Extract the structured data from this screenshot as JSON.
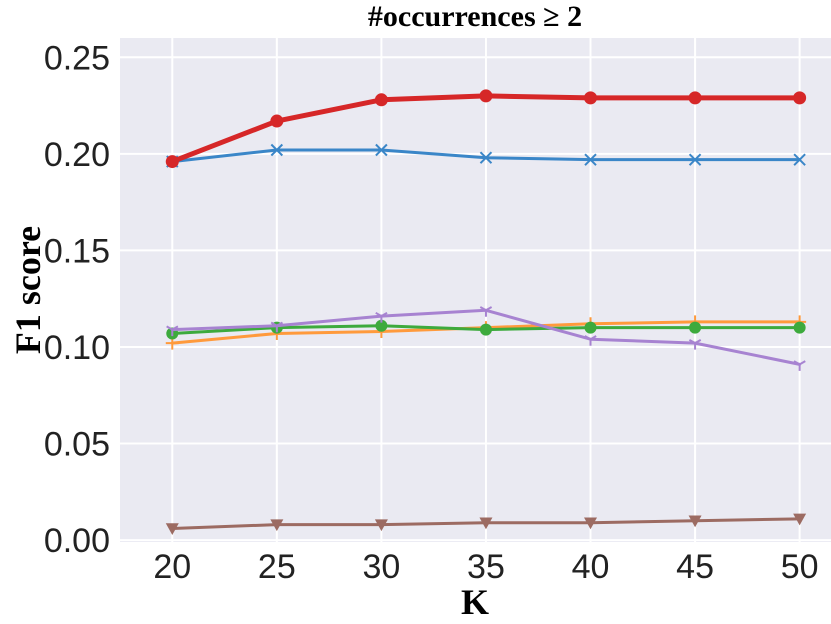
{
  "chart_data": {
    "type": "line",
    "title": "#occurrences ≥ 2",
    "xlabel": "K",
    "ylabel": "F1 score",
    "x": [
      20,
      25,
      30,
      35,
      40,
      45,
      50
    ],
    "xlim": [
      17.5,
      51.5
    ],
    "ylim": [
      -0.001,
      0.26
    ],
    "yticks": [
      "0.00",
      "0.05",
      "0.10",
      "0.15",
      "0.20",
      "0.25"
    ],
    "ytick_values": [
      0.0,
      0.05,
      0.1,
      0.15,
      0.2,
      0.25
    ],
    "xticks": [
      "20",
      "25",
      "30",
      "35",
      "40",
      "45",
      "50"
    ],
    "grid": true,
    "background": "#eaeaf2",
    "series": [
      {
        "color": "#3a86c8",
        "marker": "x",
        "values": [
          0.196,
          0.202,
          0.202,
          0.198,
          0.197,
          0.197,
          0.197
        ]
      },
      {
        "color": "#ff9a3c",
        "marker": "+",
        "values": [
          0.102,
          0.107,
          0.108,
          0.11,
          0.112,
          0.113,
          0.113
        ]
      },
      {
        "color": "#3daa3d",
        "marker": "o",
        "values": [
          0.107,
          0.11,
          0.111,
          0.109,
          0.11,
          0.11,
          0.11
        ]
      },
      {
        "color": "#d62728",
        "marker": "o",
        "bold": true,
        "values": [
          0.196,
          0.217,
          0.228,
          0.23,
          0.229,
          0.229,
          0.229
        ]
      },
      {
        "color": "#a783d1",
        "marker": "1",
        "values": [
          0.109,
          0.111,
          0.116,
          0.119,
          0.104,
          0.102,
          0.091
        ]
      },
      {
        "color": "#9c6b62",
        "marker": "v",
        "values": [
          0.006,
          0.008,
          0.008,
          0.009,
          0.009,
          0.01,
          0.011
        ]
      }
    ]
  }
}
